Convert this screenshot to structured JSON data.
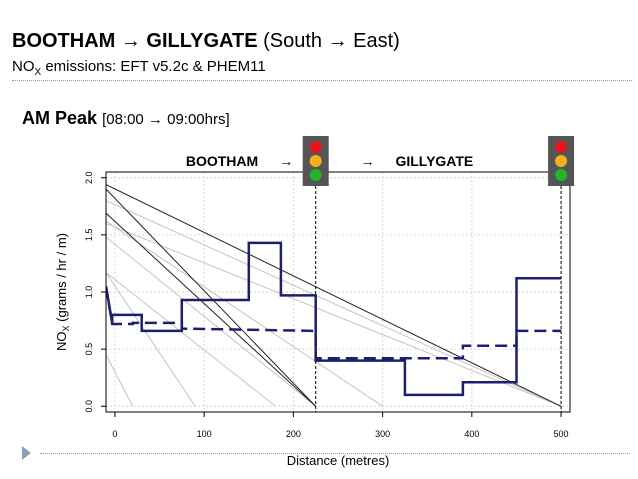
{
  "header": {
    "title_bold": "BOOTHAM → GILLYGATE",
    "title_rest": "(South → East)",
    "subtitle_prefix": "NO",
    "subtitle_sub": "X",
    "subtitle_rest": " emissions: EFT v5.2c & PHEM11",
    "peak_bold": "AM Peak",
    "peak_time": "[08:00 → 09:00hrs]"
  },
  "colors": {
    "series": "#1b1f6e",
    "grid": "#d6d6d6",
    "light_red": "#e8141c",
    "light_amber": "#f2b11c",
    "light_green": "#23b327",
    "light_housing": "#555555"
  },
  "chart_data": {
    "type": "line",
    "xlabel": "Distance (metres)",
    "ylabel_prefix": "NO",
    "ylabel_sub": "X",
    "ylabel_rest": " (grams / hr / m)",
    "xlim": [
      -10,
      510
    ],
    "ylim": [
      -0.05,
      2.05
    ],
    "xticks": [
      0,
      100,
      200,
      300,
      400,
      500
    ],
    "yticks": [
      0.0,
      0.5,
      1.0,
      1.5,
      2.0
    ],
    "xtick_labels": [
      "0",
      "100",
      "200",
      "300",
      "400",
      "500"
    ],
    "ytick_labels": [
      "0.0",
      "0.5",
      "1.0",
      "1.5",
      "2.0"
    ],
    "road_labels": [
      {
        "text": "BOOTHAM",
        "x": 120
      },
      {
        "text": "→",
        "x": 192
      },
      {
        "text": "→",
        "x": 283
      },
      {
        "text": "GILLYGATE",
        "x": 358
      }
    ],
    "signals": [
      {
        "name": "signal-1",
        "x": 225
      },
      {
        "name": "signal-2",
        "x": 500
      }
    ],
    "series": [
      {
        "style": "solid",
        "x": [
          -10,
          -3,
          -3,
          30,
          30,
          75,
          75,
          150,
          150,
          186,
          186,
          225,
          225,
          325,
          325,
          390,
          390,
          450,
          450,
          500
        ],
        "y": [
          1.05,
          0.73,
          0.8,
          0.8,
          0.66,
          0.66,
          0.93,
          0.93,
          1.43,
          1.43,
          0.97,
          0.97,
          0.4,
          0.4,
          0.1,
          0.1,
          0.21,
          0.21,
          1.12,
          1.12
        ]
      },
      {
        "style": "dashed",
        "x": [
          -10,
          -3,
          -3,
          20,
          20,
          75,
          75,
          225,
          225,
          390,
          390,
          450,
          450,
          500
        ],
        "y": [
          1.05,
          0.72,
          0.72,
          0.72,
          0.73,
          0.73,
          0.68,
          0.66,
          0.42,
          0.42,
          0.53,
          0.53,
          0.66,
          0.66
        ]
      }
    ],
    "dark_diagonals": [
      {
        "x": [
          -10,
          500
        ],
        "y": [
          1.94,
          0.0
        ]
      },
      {
        "x": [
          -10,
          225
        ],
        "y": [
          1.9,
          0.0
        ]
      },
      {
        "x": [
          -10,
          225
        ],
        "y": [
          1.69,
          0.0
        ]
      }
    ],
    "light_diagonals": [
      {
        "x": [
          -10,
          500
        ],
        "y": [
          1.8,
          0.0
        ]
      },
      {
        "x": [
          -10,
          500
        ],
        "y": [
          1.6,
          0.0
        ]
      },
      {
        "x": [
          -10,
          300
        ],
        "y": [
          1.62,
          0.0
        ]
      },
      {
        "x": [
          -10,
          225
        ],
        "y": [
          1.48,
          0.0
        ]
      },
      {
        "x": [
          -10,
          180
        ],
        "y": [
          1.17,
          0.0
        ]
      },
      {
        "x": [
          -10,
          90
        ],
        "y": [
          1.17,
          0.0
        ]
      },
      {
        "x": [
          -10,
          20
        ],
        "y": [
          0.45,
          0.0
        ]
      }
    ]
  }
}
